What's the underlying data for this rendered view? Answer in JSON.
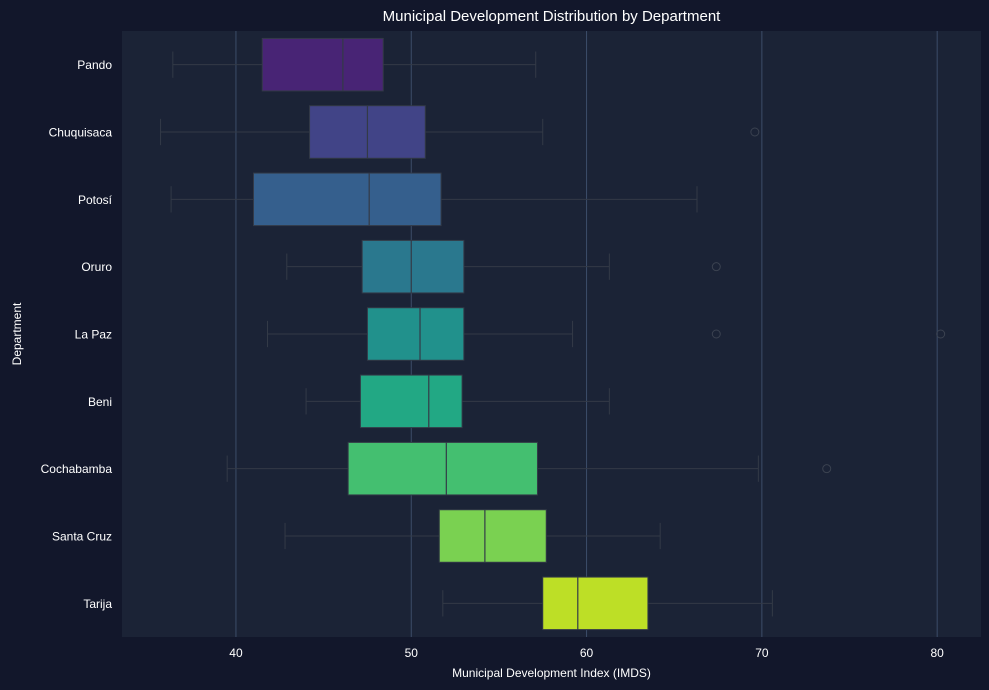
{
  "chart_data": {
    "type": "boxplot",
    "orientation": "horizontal",
    "title": "Municipal Development Distribution by Department",
    "xlabel": "Municipal Development Index (IMDS)",
    "ylabel": "Department",
    "xlim": [
      33.5,
      82.5
    ],
    "xticks": [
      40,
      50,
      60,
      70,
      80
    ],
    "grid": "vertical",
    "palette": "viridis",
    "colors": {
      "figure_bg": "#12172b",
      "axes_bg": "#1b2336",
      "grid": "#3c4d69",
      "whisker": "#333a47",
      "text": "#ffffff"
    },
    "categories": [
      "Pando",
      "Chuquisaca",
      "Potosí",
      "Oruro",
      "La Paz",
      "Beni",
      "Cochabamba",
      "Santa Cruz",
      "Tarija"
    ],
    "boxes": [
      {
        "category": "Pando",
        "whislo": 36.4,
        "q1": 41.5,
        "med": 46.1,
        "q3": 48.4,
        "whishi": 57.1,
        "fliers": [],
        "color": "#482475"
      },
      {
        "category": "Chuquisaca",
        "whislo": 35.7,
        "q1": 44.2,
        "med": 47.5,
        "q3": 50.8,
        "whishi": 57.5,
        "fliers": [
          69.6
        ],
        "color": "#414487"
      },
      {
        "category": "Potosí",
        "whislo": 36.3,
        "q1": 41.0,
        "med": 47.6,
        "q3": 51.7,
        "whishi": 66.3,
        "fliers": [],
        "color": "#355f8d"
      },
      {
        "category": "Oruro",
        "whislo": 42.9,
        "q1": 47.2,
        "med": 50.0,
        "q3": 53.0,
        "whishi": 61.3,
        "fliers": [
          67.4
        ],
        "color": "#2a788e"
      },
      {
        "category": "La Paz",
        "whislo": 41.8,
        "q1": 47.5,
        "med": 50.5,
        "q3": 53.0,
        "whishi": 59.2,
        "fliers": [
          67.4,
          80.2
        ],
        "color": "#21918c"
      },
      {
        "category": "Beni",
        "whislo": 44.0,
        "q1": 47.1,
        "med": 51.0,
        "q3": 52.9,
        "whishi": 61.3,
        "fliers": [],
        "color": "#22a884"
      },
      {
        "category": "Cochabamba",
        "whislo": 39.5,
        "q1": 46.4,
        "med": 52.0,
        "q3": 57.2,
        "whishi": 69.8,
        "fliers": [
          73.7
        ],
        "color": "#44bf70"
      },
      {
        "category": "Santa Cruz",
        "whislo": 42.8,
        "q1": 51.6,
        "med": 54.2,
        "q3": 57.7,
        "whishi": 64.2,
        "fliers": [],
        "color": "#7ad151"
      },
      {
        "category": "Tarija",
        "whislo": 51.8,
        "q1": 57.5,
        "med": 59.5,
        "q3": 63.5,
        "whishi": 70.6,
        "fliers": [],
        "color": "#bddf26"
      }
    ]
  }
}
